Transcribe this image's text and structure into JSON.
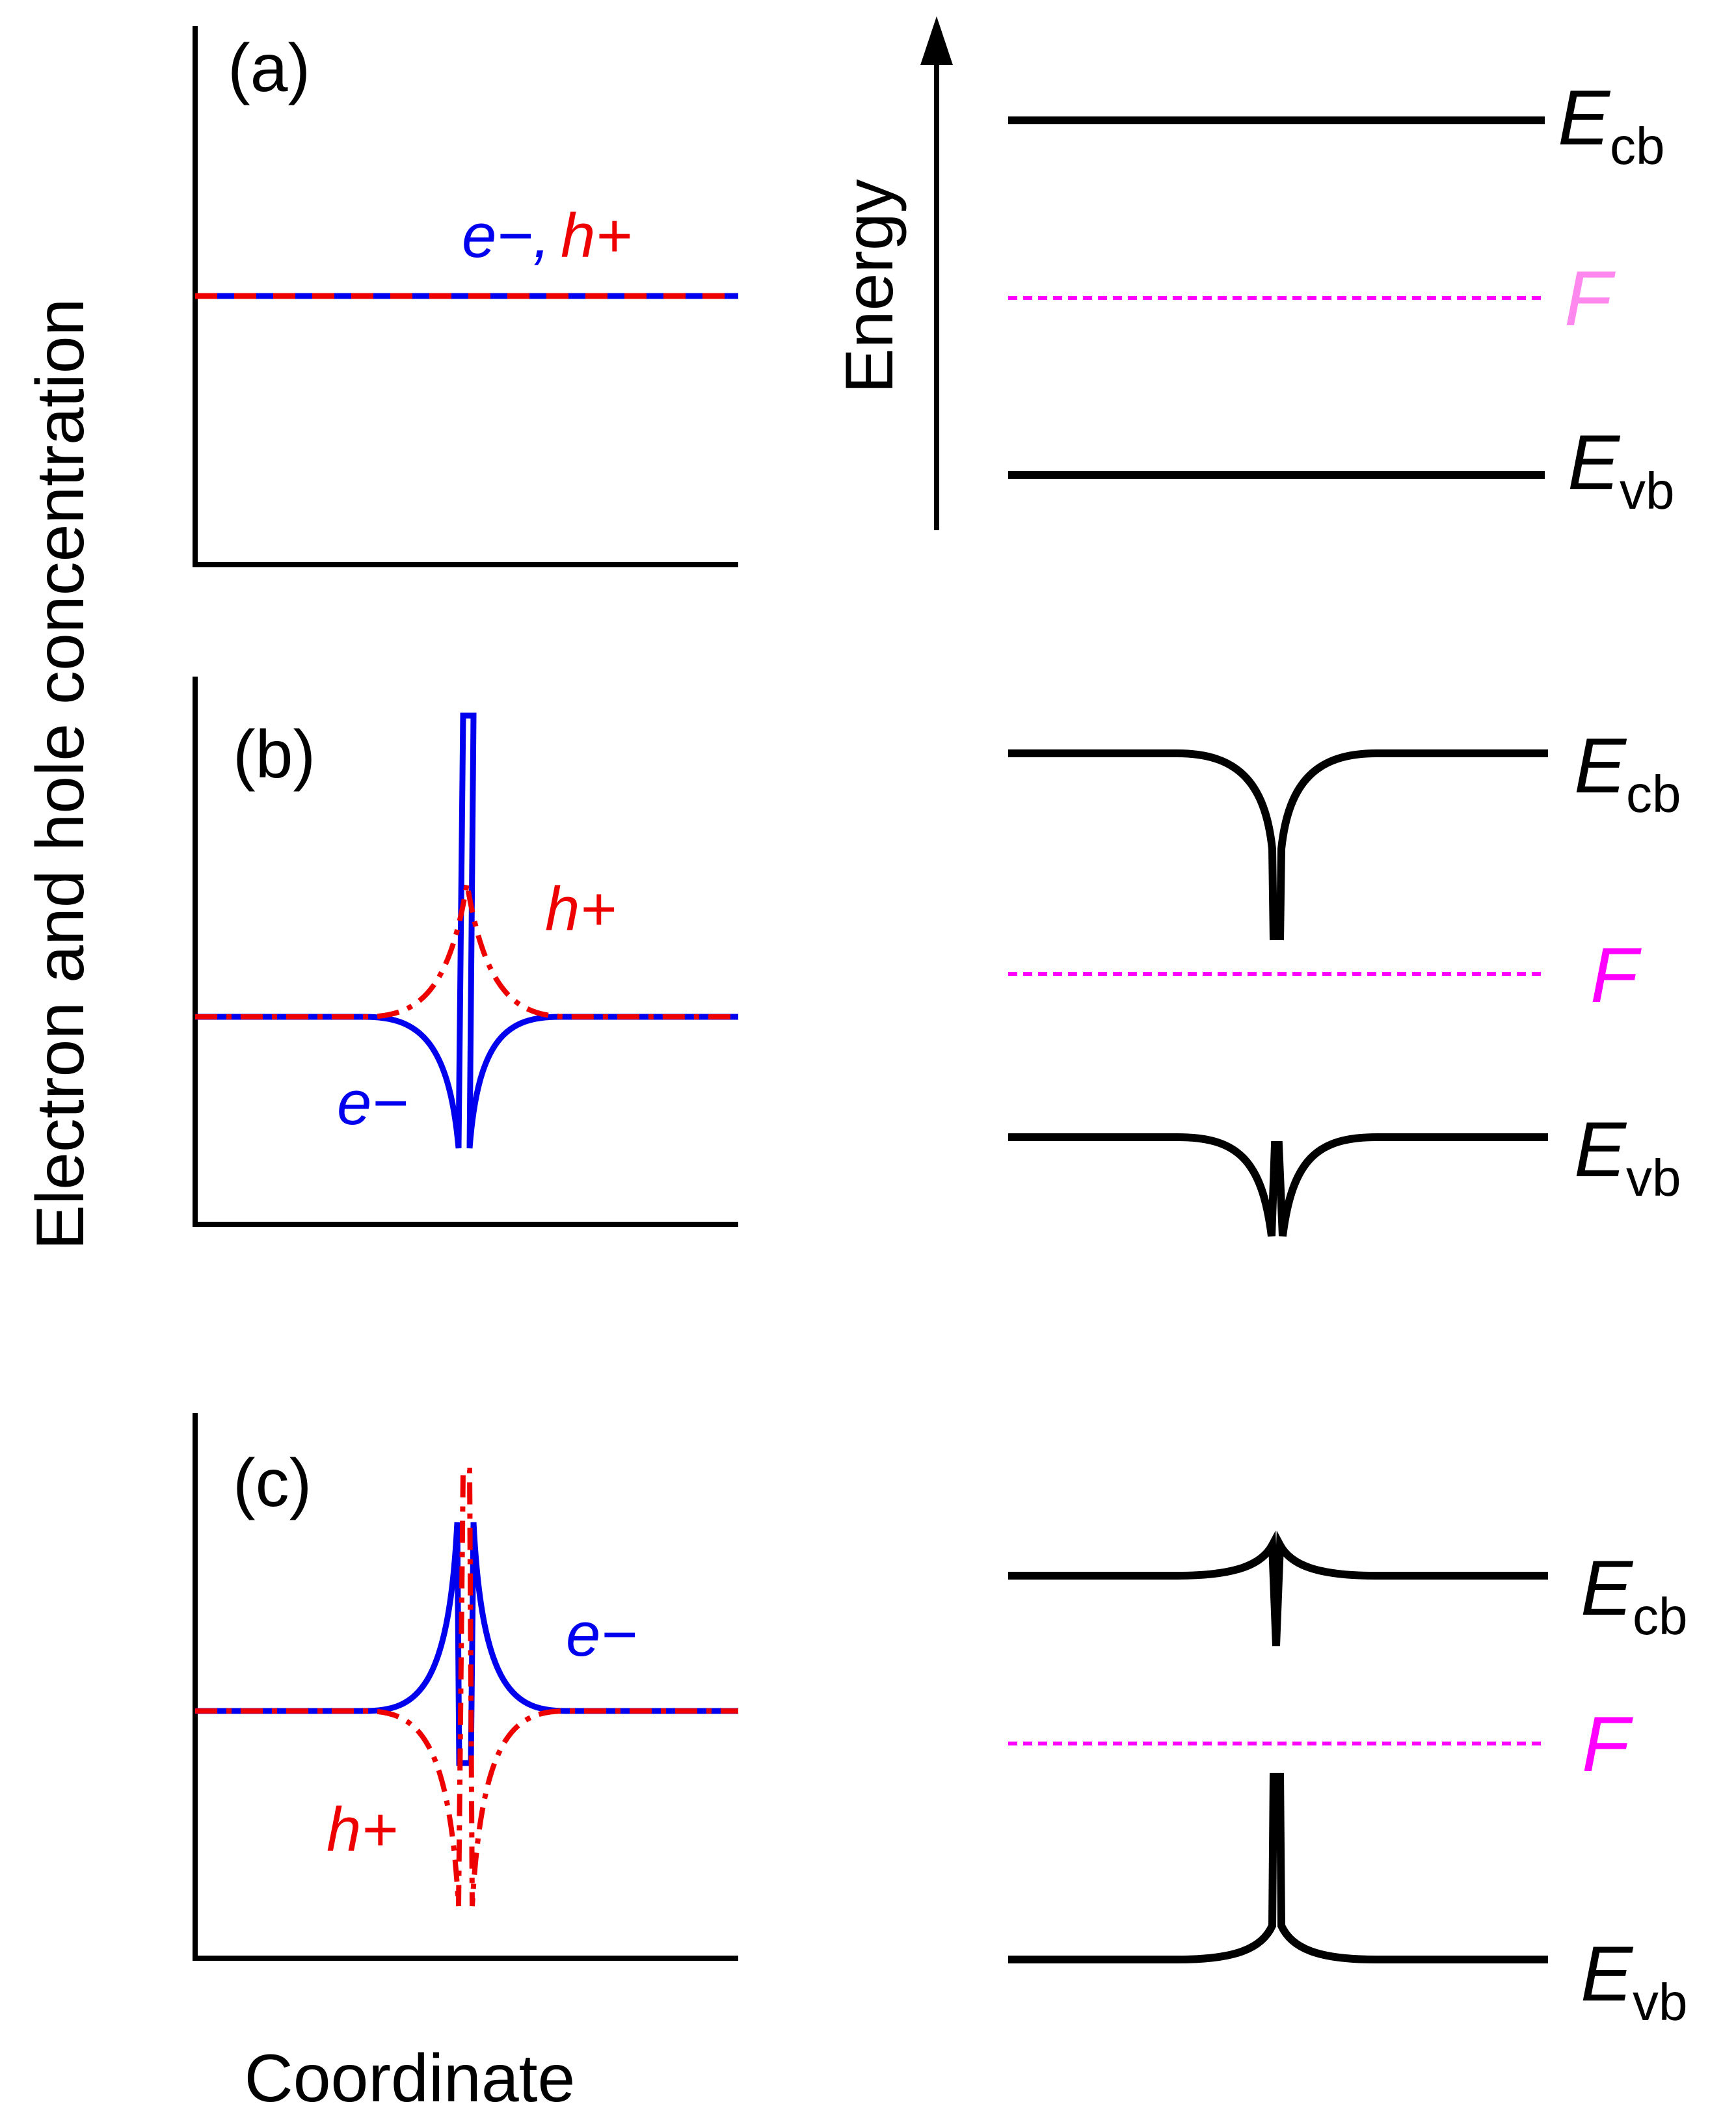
{
  "figure": {
    "y_axis_title": "Electron and  hole concentration",
    "x_axis_title": "Coordinate",
    "energy_axis_title": "Energy"
  },
  "colors": {
    "electron": "#0000ee",
    "hole": "#ee0000",
    "fermi": "#ff00ff",
    "fermi_faded": "#ff88ee",
    "band": "#000000"
  },
  "panels": [
    {
      "id": "a",
      "label": "(a)",
      "curve_labels": {
        "electron": "e−,",
        "hole": "h+"
      },
      "levels": {
        "conduction": {
          "main": "E",
          "sub": "cb"
        },
        "fermi": "F",
        "valence": {
          "main": "E",
          "sub": "vb"
        }
      }
    },
    {
      "id": "b",
      "label": "(b)",
      "curve_labels": {
        "electron": "e−",
        "hole": "h+"
      },
      "levels": {
        "conduction": {
          "main": "E",
          "sub": "cb"
        },
        "fermi": "F",
        "valence": {
          "main": "E",
          "sub": "vb"
        }
      }
    },
    {
      "id": "c",
      "label": "(c)",
      "curve_labels": {
        "electron": "e−",
        "hole": "h+"
      },
      "levels": {
        "conduction": {
          "main": "E",
          "sub": "cb"
        },
        "fermi": "F",
        "valence": {
          "main": "E",
          "sub": "vb"
        }
      }
    }
  ]
}
